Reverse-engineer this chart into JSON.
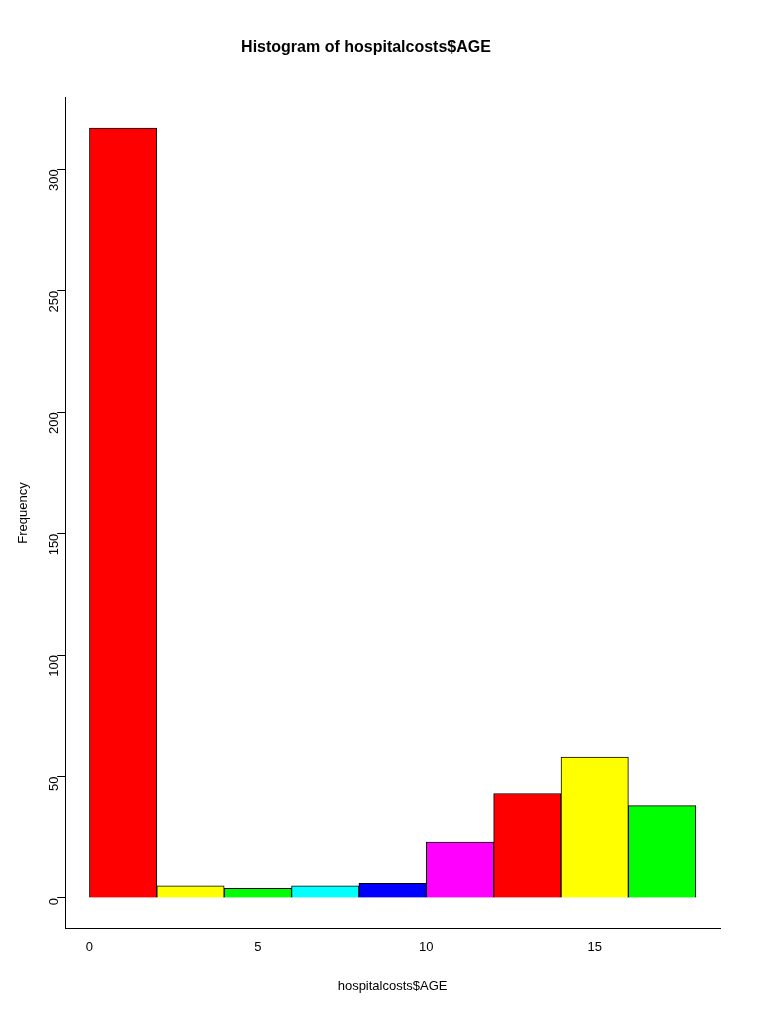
{
  "chart_data": {
    "type": "histogram",
    "title": "Histogram of hospitalcosts$AGE",
    "xlabel": "hospitalcosts$AGE",
    "ylabel": "Frequency",
    "bins": [
      0,
      2,
      4,
      6,
      8,
      10,
      12,
      14,
      16,
      18
    ],
    "values": [
      317,
      5,
      4,
      5,
      6,
      23,
      43,
      58,
      38
    ],
    "colors": [
      "#ff0000",
      "#ffff00",
      "#00ff00",
      "#00ffff",
      "#0000ff",
      "#ff00ff",
      "#ff0000",
      "#ffff00",
      "#00ff00"
    ],
    "xlim": [
      -0.72,
      18.72
    ],
    "ylim": [
      -12.7,
      329.7
    ],
    "xticks": [
      0,
      5,
      10,
      15
    ],
    "yticks": [
      0,
      50,
      100,
      150,
      200,
      250,
      300
    ],
    "grid": false,
    "legend": false
  }
}
